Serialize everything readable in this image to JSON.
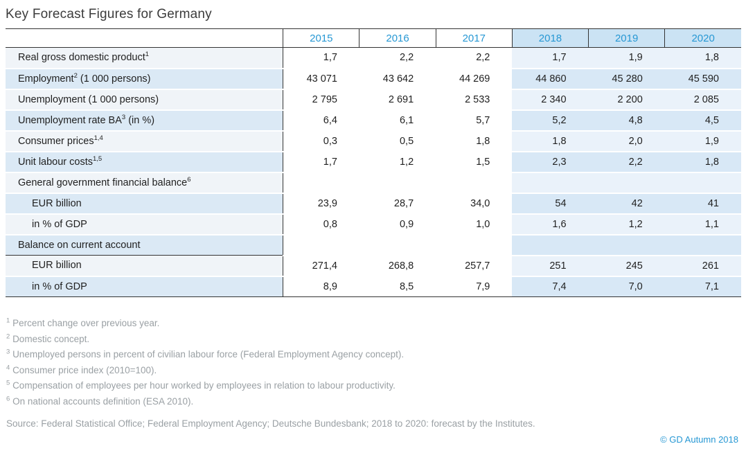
{
  "title": "Key Forecast Figures for Germany",
  "table": {
    "header": {
      "years": [
        "2015",
        "2016",
        "2017",
        "2018",
        "2019",
        "2020"
      ],
      "forecast_from_index": 3
    },
    "rows": [
      {
        "label": {
          "pre": "Real gross domestic product",
          "sup": "1",
          "post": ""
        },
        "indent": 0,
        "separator_below": false,
        "values": [
          "1,7",
          "2,2",
          "2,2",
          "1,7",
          "1,9",
          "1,8"
        ]
      },
      {
        "label": {
          "pre": "Employment",
          "sup": "2",
          "post": " (1 000 persons)"
        },
        "indent": 0,
        "separator_below": false,
        "values": [
          "43 071",
          "43 642",
          "44 269",
          "44 860",
          "45 280",
          "45 590"
        ]
      },
      {
        "label": {
          "pre": "Unemployment (1 000 persons)",
          "sup": "",
          "post": ""
        },
        "indent": 0,
        "separator_below": false,
        "values": [
          "2 795",
          "2 691",
          "2 533",
          "2 340",
          "2 200",
          "2 085"
        ]
      },
      {
        "label": {
          "pre": "Unemployment rate BA",
          "sup": "3",
          "post": " (in %)"
        },
        "indent": 0,
        "separator_below": false,
        "values": [
          "6,4",
          "6,1",
          "5,7",
          "5,2",
          "4,8",
          "4,5"
        ]
      },
      {
        "label": {
          "pre": "Consumer prices",
          "sup": "1,4",
          "post": ""
        },
        "indent": 0,
        "separator_below": false,
        "values": [
          "0,3",
          "0,5",
          "1,8",
          "1,8",
          "2,0",
          "1,9"
        ]
      },
      {
        "label": {
          "pre": "Unit labour costs",
          "sup": "1,5",
          "post": ""
        },
        "indent": 0,
        "separator_below": false,
        "values": [
          "1,7",
          "1,2",
          "1,5",
          "2,3",
          "2,2",
          "1,8"
        ]
      },
      {
        "label": {
          "pre": "General government financial balance",
          "sup": "6",
          "post": ""
        },
        "indent": 0,
        "separator_below": false,
        "values": [
          "",
          "",
          "",
          "",
          "",
          ""
        ]
      },
      {
        "label": {
          "pre": "EUR billion",
          "sup": "",
          "post": ""
        },
        "indent": 1,
        "separator_below": false,
        "values": [
          "23,9",
          "28,7",
          "34,0",
          "54",
          "42",
          "41"
        ]
      },
      {
        "label": {
          "pre": "in % of GDP",
          "sup": "",
          "post": ""
        },
        "indent": 1,
        "separator_below": false,
        "values": [
          "0,8",
          "0,9",
          "1,0",
          "1,6",
          "1,2",
          "1,1"
        ]
      },
      {
        "label": {
          "pre": "Balance on current account",
          "sup": "",
          "post": ""
        },
        "indent": 0,
        "separator_below": true,
        "values": [
          "",
          "",
          "",
          "",
          "",
          ""
        ]
      },
      {
        "label": {
          "pre": "EUR billion",
          "sup": "",
          "post": ""
        },
        "indent": 1,
        "separator_below": false,
        "values": [
          "271,4",
          "268,8",
          "257,7",
          "251",
          "245",
          "261"
        ]
      },
      {
        "label": {
          "pre": "in % of GDP",
          "sup": "",
          "post": ""
        },
        "indent": 1,
        "separator_below": false,
        "values": [
          "8,9",
          "8,5",
          "7,9",
          "7,4",
          "7,0",
          "7,1"
        ]
      }
    ]
  },
  "chart_data": {
    "type": "table",
    "title": "Key Forecast Figures for Germany",
    "columns": [
      "2015",
      "2016",
      "2017",
      "2018",
      "2019",
      "2020"
    ],
    "forecast_columns": [
      "2018",
      "2019",
      "2020"
    ],
    "rows": [
      {
        "label": "Real gross domestic product",
        "footnotes": [
          1
        ],
        "values": [
          1.7,
          2.2,
          2.2,
          1.7,
          1.9,
          1.8
        ]
      },
      {
        "label": "Employment (1 000 persons)",
        "footnotes": [
          2
        ],
        "values": [
          43071,
          43642,
          44269,
          44860,
          45280,
          45590
        ]
      },
      {
        "label": "Unemployment (1 000 persons)",
        "footnotes": [],
        "values": [
          2795,
          2691,
          2533,
          2340,
          2200,
          2085
        ]
      },
      {
        "label": "Unemployment rate BA (in %)",
        "footnotes": [
          3
        ],
        "values": [
          6.4,
          6.1,
          5.7,
          5.2,
          4.8,
          4.5
        ]
      },
      {
        "label": "Consumer prices",
        "footnotes": [
          1,
          4
        ],
        "values": [
          0.3,
          0.5,
          1.8,
          1.8,
          2.0,
          1.9
        ]
      },
      {
        "label": "Unit labour costs",
        "footnotes": [
          1,
          5
        ],
        "values": [
          1.7,
          1.2,
          1.5,
          2.3,
          2.2,
          1.8
        ]
      },
      {
        "label": "General government financial balance",
        "footnotes": [
          6
        ],
        "values": [
          null,
          null,
          null,
          null,
          null,
          null
        ]
      },
      {
        "label": "General government financial balance — EUR billion",
        "footnotes": [],
        "values": [
          23.9,
          28.7,
          34.0,
          54,
          42,
          41
        ]
      },
      {
        "label": "General government financial balance — in % of GDP",
        "footnotes": [],
        "values": [
          0.8,
          0.9,
          1.0,
          1.6,
          1.2,
          1.1
        ]
      },
      {
        "label": "Balance on current account",
        "footnotes": [],
        "values": [
          null,
          null,
          null,
          null,
          null,
          null
        ]
      },
      {
        "label": "Balance on current account — EUR billion",
        "footnotes": [],
        "values": [
          271.4,
          268.8,
          257.7,
          251,
          245,
          261
        ]
      },
      {
        "label": "Balance on current account — in % of GDP",
        "footnotes": [],
        "values": [
          8.9,
          8.5,
          7.9,
          7.4,
          7.0,
          7.1
        ]
      }
    ]
  },
  "footnotes": [
    {
      "marker": "1",
      "text": "Percent change over previous year."
    },
    {
      "marker": "2",
      "text": "Domestic concept."
    },
    {
      "marker": "3",
      "text": "Unemployed persons in percent of civilian labour force (Federal Employment Agency concept)."
    },
    {
      "marker": "4",
      "text": "Consumer price index (2010=100)."
    },
    {
      "marker": "5",
      "text": "Compensation of employees per hour worked by employees in relation to labour productivity."
    },
    {
      "marker": "6",
      "text": "On national accounts definition (ESA 2010)."
    }
  ],
  "source": "Source: Federal Statistical Office; Federal Employment Agency; Deutsche Bundesbank; 2018 to 2020: forecast by the Institutes.",
  "copyright": "© GD Autumn 2018",
  "colors": {
    "accent_blue": "#2798d4",
    "header_forecast_bg": "#cbe3f4",
    "forecast_row_pale": "#eaf2fa",
    "forecast_row_blue": "#d8e8f6",
    "label_row_pale": "#f0f4f8",
    "label_row_blue": "#dbe9f5",
    "border_dark": "#333333",
    "footnote_gray": "#9aa0a4"
  }
}
